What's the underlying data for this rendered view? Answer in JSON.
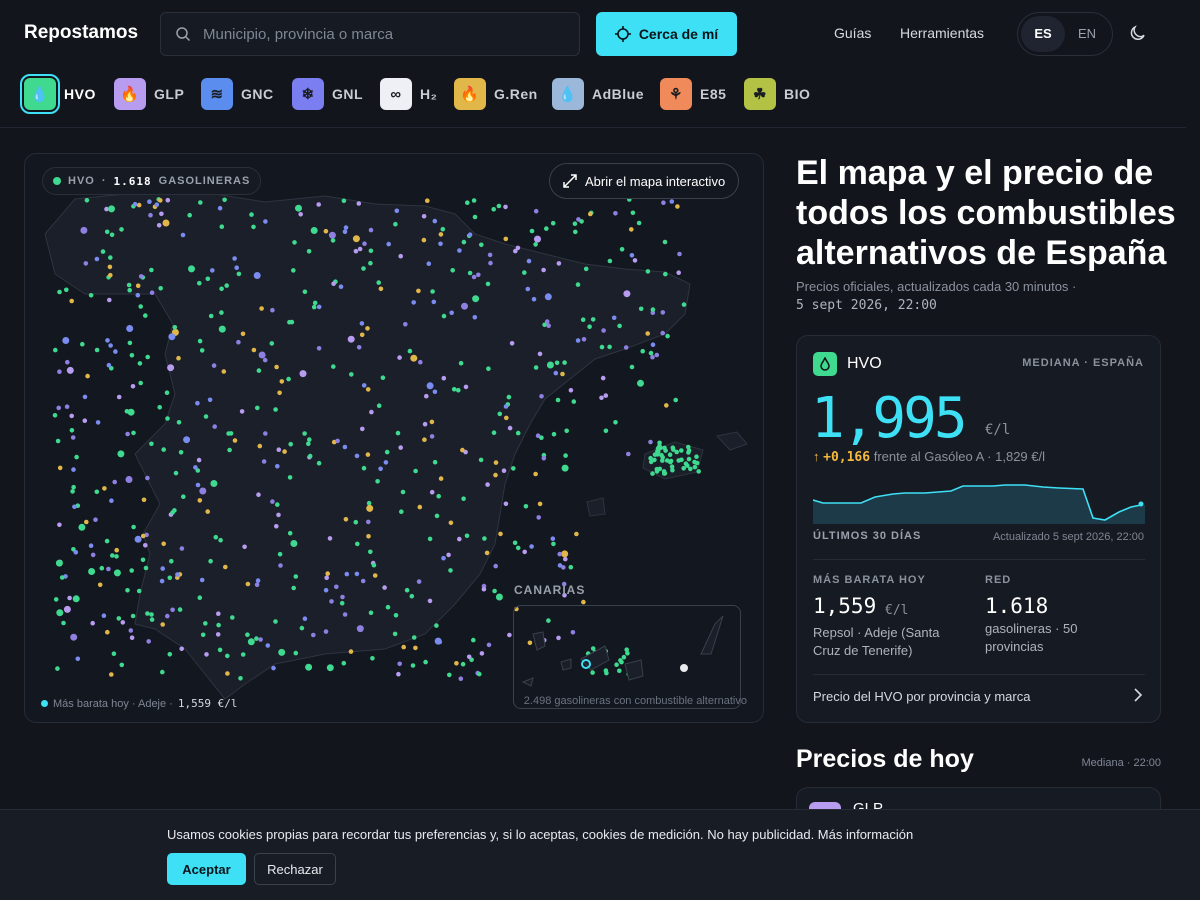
{
  "header": {
    "logo": "Repostamos",
    "search": {
      "placeholder": "Municipio, provincia o marca"
    },
    "near_me": "Cerca de mí",
    "nav": [
      "Guías",
      "Herramientas"
    ],
    "lang": [
      "ES",
      "EN"
    ],
    "lang_selected": "ES"
  },
  "fuels": [
    {
      "label": "HVO",
      "color": "#3fd98f",
      "icon": "drop-icon",
      "selected": true
    },
    {
      "label": "GLP",
      "color": "#b79cf0",
      "icon": "flame-drop-icon"
    },
    {
      "label": "GNC",
      "color": "#5b8def",
      "icon": "wind-icon"
    },
    {
      "label": "GNL",
      "color": "#7b7ef0",
      "icon": "snowflake-icon"
    },
    {
      "label": "H₂",
      "color": "#eef0f5",
      "icon": "infinity-icon"
    },
    {
      "label": "G.Ren",
      "color": "#e2b74a",
      "icon": "flame-drop-icon"
    },
    {
      "label": "AdBlue",
      "color": "#9bb7d9",
      "icon": "drop-icon"
    },
    {
      "label": "E85",
      "color": "#f08a5b",
      "icon": "wheat-icon"
    },
    {
      "label": "BIO",
      "color": "#b3c245",
      "icon": "sprout-icon"
    }
  ],
  "map": {
    "pill_fuel": "HVO",
    "pill_sep": "·",
    "pill_count": "1.618",
    "pill_unit": "GASOLINERAS",
    "open_label": "Abrir el mapa interactivo",
    "canarias_label": "CANARIAS",
    "foot_left": "Más barata hoy · Adeje ·",
    "foot_price": "1,559 €/l",
    "foot_right": "2.498 gasolineras con combustible alternativo"
  },
  "hero": {
    "title": "El mapa y el precio de todos los combustibles alternativos de España",
    "sub": "Precios oficiales, actualizados cada 30 minutos ·",
    "timestamp": "5 sept 2026, 22:00"
  },
  "card": {
    "fuel": "HVO",
    "median_label": "MEDIANA · ESPAÑA",
    "price": "1,995",
    "unit": "€/l",
    "delta": "+0,166",
    "delta_text": "frente al Gasóleo A · 1,829 €/l",
    "spark_label": "ÚLTIMOS 30 DÍAS",
    "updated": "Actualizado 5 sept 2026, 22:00",
    "cheapest_label": "MÁS BARATA HOY",
    "cheapest_price": "1,559",
    "cheapest_unit": "€/l",
    "cheapest_place": "Repsol · Adeje (Santa Cruz de Tenerife)",
    "network_label": "RED",
    "network_count": "1.618",
    "network_text": "gasolineras · 50 provincias",
    "link": "Precio del HVO por provincia y marca"
  },
  "today": {
    "title": "Precios de hoy",
    "right": "Mediana · 22:00",
    "first_fuel": "GLP"
  },
  "cookie": {
    "text": "Usamos cookies propias para recordar tus preferencias y, si lo aceptas, cookies de medición. No hay publicidad. Más información",
    "accept": "Aceptar",
    "reject": "Rechazar"
  },
  "colors": {
    "accent": "#3ee0f6",
    "hvo": "#3fd98f",
    "glp": "#b79cf0",
    "gren": "#e2b74a",
    "warn": "#f5b942"
  }
}
